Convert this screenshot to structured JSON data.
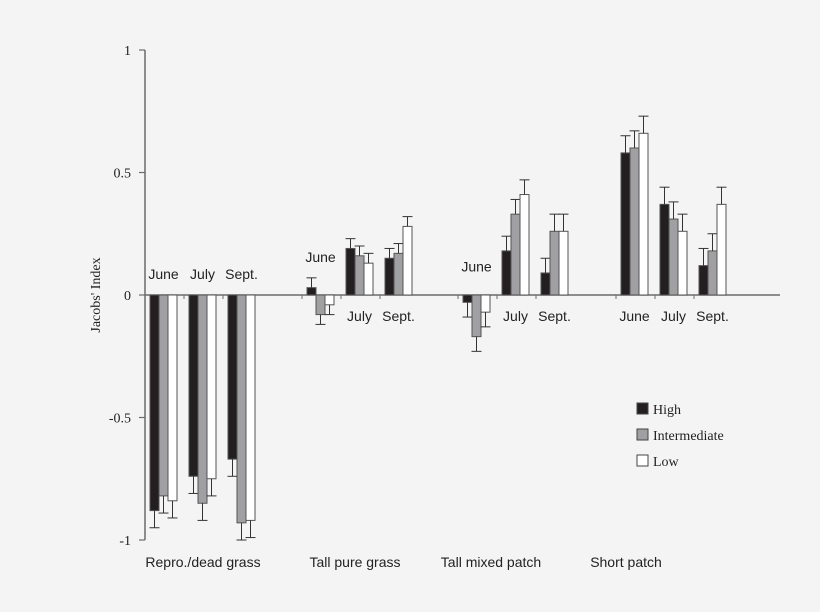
{
  "chart_data": {
    "type": "bar",
    "ylabel": "Jacobs' Index",
    "xlabel": "",
    "ylim": [
      -1,
      1
    ],
    "yticks": [
      {
        "value": 1,
        "label": "1"
      },
      {
        "value": 0.5,
        "label": "0.5"
      },
      {
        "value": 0,
        "label": "0"
      },
      {
        "value": -0.5,
        "label": "-0.5"
      },
      {
        "value": -1,
        "label": "-1"
      }
    ],
    "grid": false,
    "legend_position": "bottom-right",
    "series_names": [
      "High",
      "Intermediate",
      "Low"
    ],
    "series_colors": [
      "#231f20",
      "#a0a0a3",
      "#ffffff"
    ],
    "categories": [
      {
        "label": "Repro./dead grass",
        "months": [
          {
            "label": "June",
            "values": [
              -0.88,
              -0.82,
              -0.84
            ],
            "errors": [
              0.07,
              0.07,
              0.07
            ]
          },
          {
            "label": "July",
            "values": [
              -0.74,
              -0.85,
              -0.75
            ],
            "errors": [
              0.07,
              0.07,
              0.07
            ]
          },
          {
            "label": "Sept.",
            "values": [
              -0.67,
              -0.93,
              -0.92
            ],
            "errors": [
              0.07,
              0.07,
              0.07
            ]
          }
        ]
      },
      {
        "label": "Tall pure grass",
        "months": [
          {
            "label": "June",
            "values": [
              0.03,
              -0.08,
              -0.04
            ],
            "errors": [
              0.04,
              0.04,
              0.04
            ]
          },
          {
            "label": "July",
            "values": [
              0.19,
              0.16,
              0.13
            ],
            "errors": [
              0.04,
              0.04,
              0.04
            ]
          },
          {
            "label": "Sept.",
            "values": [
              0.15,
              0.17,
              0.28
            ],
            "errors": [
              0.04,
              0.04,
              0.04
            ]
          }
        ]
      },
      {
        "label": "Tall mixed patch",
        "months": [
          {
            "label": "June",
            "values": [
              -0.03,
              -0.17,
              -0.07
            ],
            "errors": [
              0.06,
              0.06,
              0.06
            ]
          },
          {
            "label": "July",
            "values": [
              0.18,
              0.33,
              0.41
            ],
            "errors": [
              0.06,
              0.06,
              0.06
            ]
          },
          {
            "label": "Sept.",
            "values": [
              0.09,
              0.26,
              0.26
            ],
            "errors": [
              0.06,
              0.07,
              0.07
            ]
          }
        ]
      },
      {
        "label": "Short patch",
        "months": [
          {
            "label": "June",
            "values": [
              0.58,
              0.6,
              0.66
            ],
            "errors": [
              0.07,
              0.07,
              0.07
            ]
          },
          {
            "label": "July",
            "values": [
              0.37,
              0.31,
              0.26
            ],
            "errors": [
              0.07,
              0.07,
              0.07
            ]
          },
          {
            "label": "Sept.",
            "values": [
              0.12,
              0.18,
              0.37
            ],
            "errors": [
              0.07,
              0.07,
              0.07
            ]
          }
        ]
      }
    ]
  }
}
